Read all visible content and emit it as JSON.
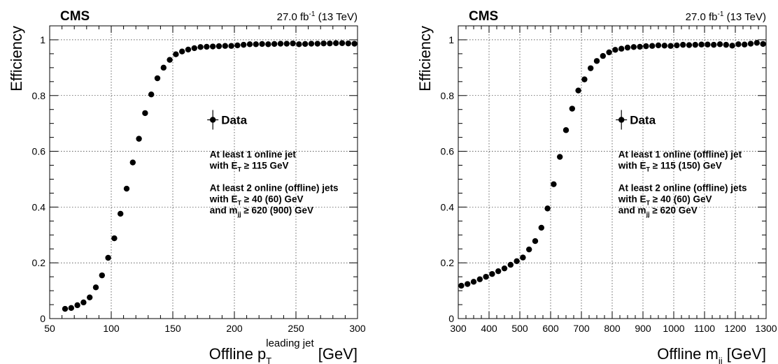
{
  "chart_data": [
    {
      "type": "scatter",
      "experiment": "CMS",
      "lumi": "27.0 fb",
      "lumi_sup": "-1",
      "energy": " (13 TeV)",
      "ylabel": "Efficiency",
      "xlabel_pre": "Offline p",
      "xlabel_sub": "T",
      "xlabel_sup": "leading jet",
      "xlabel_post": " [GeV]",
      "xlim": [
        50,
        300
      ],
      "ylim": [
        0,
        1.05
      ],
      "xticks": [
        50,
        100,
        150,
        200,
        250,
        300
      ],
      "yticks": [
        0,
        0.2,
        0.4,
        0.6,
        0.8,
        1
      ],
      "grid": true,
      "legend": {
        "label": "Data",
        "position": "center-right"
      },
      "annotations": [
        [
          {
            "t": "At least 1 online jet"
          }
        ],
        [
          {
            "t": "with E"
          },
          {
            "t": "T",
            "sub": true
          },
          {
            "t": " ≥ 115 GeV"
          }
        ],
        [
          {
            "t": ""
          }
        ],
        [
          {
            "t": "At least 2 online (offline) jets"
          }
        ],
        [
          {
            "t": "with E"
          },
          {
            "t": "T",
            "sub": true
          },
          {
            "t": " ≥ 40 (60) GeV"
          }
        ],
        [
          {
            "t": "and m"
          },
          {
            "t": "jj",
            "sub": true
          },
          {
            "t": " ≥ 620 (900) GeV"
          }
        ]
      ],
      "series": [
        {
          "x": [
            62.5,
            67.5,
            72.5,
            77.5,
            82.5,
            87.5,
            92.5,
            97.5,
            102.5,
            107.5,
            112.5,
            117.5,
            122.5,
            127.5,
            132.5,
            137.5,
            142.5,
            147.5,
            152.5,
            157.5,
            162.5,
            167.5,
            172.5,
            177.5,
            182.5,
            187.5,
            192.5,
            197.5,
            202.5,
            207.5,
            212.5,
            217.5,
            222.5,
            227.5,
            232.5,
            237.5,
            242.5,
            247.5,
            252.5,
            257.5,
            262.5,
            267.5,
            272.5,
            277.5,
            282.5,
            287.5,
            292.5,
            297.5
          ],
          "y": [
            0.035,
            0.038,
            0.048,
            0.058,
            0.076,
            0.112,
            0.155,
            0.218,
            0.288,
            0.376,
            0.466,
            0.56,
            0.645,
            0.737,
            0.804,
            0.862,
            0.9,
            0.928,
            0.948,
            0.958,
            0.965,
            0.97,
            0.974,
            0.975,
            0.976,
            0.977,
            0.978,
            0.978,
            0.98,
            0.982,
            0.984,
            0.984,
            0.985,
            0.984,
            0.985,
            0.986,
            0.986,
            0.987,
            0.984,
            0.985,
            0.986,
            0.986,
            0.987,
            0.987,
            0.988,
            0.988,
            0.987,
            0.986
          ],
          "yerr": [
            0.008,
            0.006,
            0.006,
            0.006,
            0.007,
            0.008,
            0.009,
            0.01,
            0.01,
            0.01,
            0.01,
            0.01,
            0.01,
            0.008,
            0.007,
            0.006,
            0.005,
            0.004,
            0.004,
            0.003,
            0.003,
            0.003,
            0.003,
            0.003,
            0.003,
            0.003,
            0.003,
            0.003,
            0.003,
            0.003,
            0.003,
            0.003,
            0.003,
            0.003,
            0.003,
            0.003,
            0.003,
            0.003,
            0.003,
            0.003,
            0.003,
            0.003,
            0.003,
            0.003,
            0.003,
            0.003,
            0.003,
            0.003
          ]
        }
      ]
    },
    {
      "type": "scatter",
      "experiment": "CMS",
      "lumi": "27.0 fb",
      "lumi_sup": "-1",
      "energy": " (13 TeV)",
      "ylabel": "Efficiency",
      "xlabel_pre": "Offline m",
      "xlabel_sub": "jj",
      "xlabel_sup": "",
      "xlabel_post": " [GeV]",
      "xlim": [
        300,
        1300
      ],
      "ylim": [
        0,
        1.05
      ],
      "xticks": [
        300,
        400,
        500,
        600,
        700,
        800,
        900,
        1000,
        1100,
        1200,
        1300
      ],
      "yticks": [
        0,
        0.2,
        0.4,
        0.6,
        0.8,
        1
      ],
      "grid": true,
      "legend": {
        "label": "Data",
        "position": "center-right"
      },
      "annotations": [
        [
          {
            "t": "At least 1 online (offline) jet"
          }
        ],
        [
          {
            "t": "with E"
          },
          {
            "t": "T",
            "sub": true
          },
          {
            "t": " ≥ 115 (150) GeV"
          }
        ],
        [
          {
            "t": ""
          }
        ],
        [
          {
            "t": "At least 2 online (offline) jets"
          }
        ],
        [
          {
            "t": "with E"
          },
          {
            "t": "T",
            "sub": true
          },
          {
            "t": " ≥ 40 (60) GeV"
          }
        ],
        [
          {
            "t": "and m"
          },
          {
            "t": "jj",
            "sub": true
          },
          {
            "t": " ≥ 620 GeV"
          }
        ]
      ],
      "series": [
        {
          "x": [
            310,
            330,
            350,
            370,
            390,
            410,
            430,
            450,
            470,
            490,
            510,
            530,
            550,
            570,
            590,
            610,
            630,
            650,
            670,
            690,
            710,
            730,
            750,
            770,
            790,
            810,
            830,
            850,
            870,
            890,
            910,
            930,
            950,
            970,
            990,
            1010,
            1030,
            1050,
            1070,
            1090,
            1110,
            1130,
            1150,
            1170,
            1190,
            1210,
            1230,
            1250,
            1270,
            1290
          ],
          "y": [
            0.118,
            0.124,
            0.132,
            0.141,
            0.15,
            0.16,
            0.17,
            0.18,
            0.193,
            0.206,
            0.219,
            0.248,
            0.278,
            0.326,
            0.395,
            0.482,
            0.58,
            0.676,
            0.753,
            0.818,
            0.858,
            0.898,
            0.924,
            0.942,
            0.955,
            0.964,
            0.968,
            0.972,
            0.974,
            0.975,
            0.977,
            0.978,
            0.98,
            0.979,
            0.978,
            0.98,
            0.982,
            0.981,
            0.982,
            0.983,
            0.983,
            0.982,
            0.984,
            0.982,
            0.979,
            0.984,
            0.983,
            0.986,
            0.989,
            0.985
          ],
          "yerr": [
            0.008,
            0.006,
            0.006,
            0.006,
            0.006,
            0.006,
            0.006,
            0.006,
            0.006,
            0.006,
            0.007,
            0.007,
            0.008,
            0.008,
            0.009,
            0.009,
            0.009,
            0.008,
            0.008,
            0.007,
            0.006,
            0.005,
            0.005,
            0.004,
            0.004,
            0.004,
            0.004,
            0.004,
            0.004,
            0.004,
            0.004,
            0.004,
            0.004,
            0.004,
            0.004,
            0.004,
            0.004,
            0.004,
            0.004,
            0.004,
            0.004,
            0.004,
            0.005,
            0.005,
            0.005,
            0.005,
            0.005,
            0.005,
            0.006,
            0.006
          ]
        }
      ]
    }
  ]
}
